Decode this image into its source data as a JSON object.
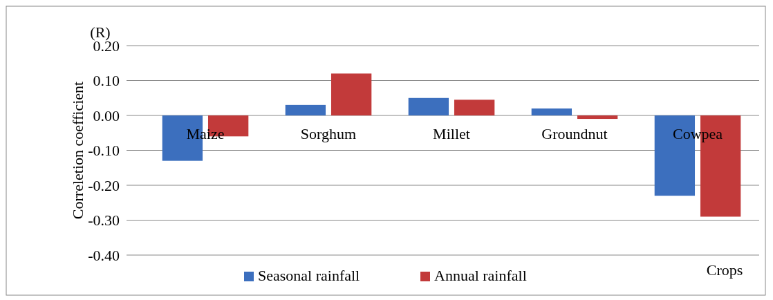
{
  "chart_data": {
    "type": "bar",
    "ylabel": "Correletion coefficient",
    "xlabel": "Crops",
    "annotations": [
      "(R)"
    ],
    "categories": [
      "Maize",
      "Sorghum",
      "Millet",
      "Groundnut",
      "Cowpea"
    ],
    "series": [
      {
        "name": "Seasonal rainfall",
        "color": "#3c6fbe",
        "values": [
          -0.13,
          0.03,
          0.05,
          0.02,
          -0.23
        ]
      },
      {
        "name": "Annual rainfall",
        "color": "#c23a3a",
        "values": [
          -0.06,
          0.12,
          0.045,
          -0.01,
          -0.29
        ]
      }
    ],
    "ylim": [
      -0.4,
      0.2
    ],
    "yticks": [
      {
        "value": -0.4,
        "label": "-0.40"
      },
      {
        "value": -0.3,
        "label": "-0.30"
      },
      {
        "value": -0.2,
        "label": "-0.20"
      },
      {
        "value": -0.1,
        "label": "-0.10"
      },
      {
        "value": 0,
        "label": "0.00"
      },
      {
        "value": 0.1,
        "label": "0.10"
      },
      {
        "value": 0.2,
        "label": "0.20"
      }
    ],
    "grid": "y",
    "legend": "bottom"
  }
}
